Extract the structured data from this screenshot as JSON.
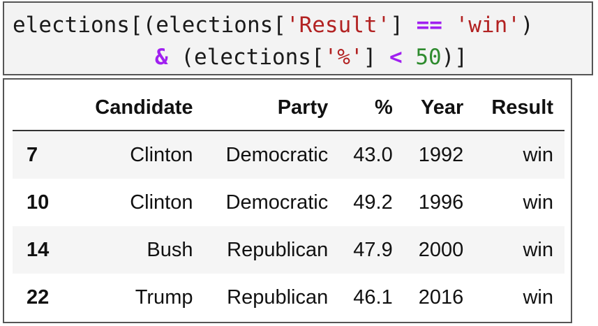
{
  "code": {
    "line1": {
      "t1": "elections[(elections[",
      "t2": "'Result'",
      "t3": "] ",
      "t4": "==",
      "t5": " ",
      "t6": "'win'",
      "t7": ")"
    },
    "line2": {
      "t1": "&",
      "t2": " (elections[",
      "t3": "'%'",
      "t4": "] ",
      "t5": "<",
      "t6": " ",
      "t7": "50",
      "t8": ")]"
    }
  },
  "table": {
    "headers": [
      "",
      "Candidate",
      "Party",
      "%",
      "Year",
      "Result"
    ],
    "rows": [
      {
        "index": "7",
        "candidate": "Clinton",
        "party": "Democratic",
        "pct": "43.0",
        "year": "1992",
        "result": "win"
      },
      {
        "index": "10",
        "candidate": "Clinton",
        "party": "Democratic",
        "pct": "49.2",
        "year": "1996",
        "result": "win"
      },
      {
        "index": "14",
        "candidate": "Bush",
        "party": "Republican",
        "pct": "47.9",
        "year": "2000",
        "result": "win"
      },
      {
        "index": "22",
        "candidate": "Trump",
        "party": "Republican",
        "pct": "46.1",
        "year": "2016",
        "result": "win"
      }
    ]
  },
  "colors": {
    "string": "#b22222",
    "operator": "#a020f0",
    "number": "#2e8b2e"
  }
}
